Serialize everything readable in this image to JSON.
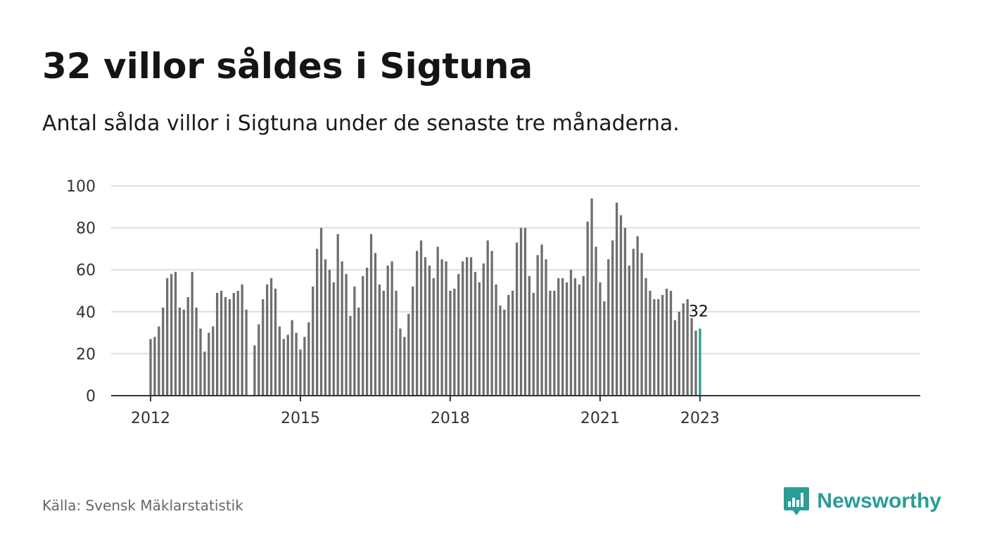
{
  "header": {
    "title": "32 villor såldes i Sigtuna",
    "subtitle": "Antal sålda villor i Sigtuna under de senaste tre månaderna."
  },
  "footer": {
    "source": "Källa: Svensk Mäklarstatistik",
    "brand": "Newsworthy",
    "brand_icon": "bar-chart-speech-bubble-icon"
  },
  "colors": {
    "bar": "#6f6f6f",
    "highlight": "#2a9d97",
    "grid": "#dddddd",
    "axis": "#333333"
  },
  "chart_data": {
    "type": "bar",
    "title": "32 villor såldes i Sigtuna",
    "subtitle": "Antal sålda villor i Sigtuna under de senaste tre månaderna.",
    "xlabel": "",
    "ylabel": "",
    "ylim": [
      0,
      100
    ],
    "yticks": [
      0,
      20,
      40,
      60,
      80,
      100
    ],
    "xticks": [
      "2012",
      "2015",
      "2018",
      "2021",
      "2023"
    ],
    "grid": true,
    "start_month": "2012-01",
    "highlight_label": "32",
    "values": [
      27,
      28,
      33,
      42,
      56,
      58,
      59,
      42,
      41,
      47,
      59,
      42,
      32,
      21,
      30,
      33,
      49,
      50,
      47,
      46,
      49,
      50,
      53,
      41,
      0,
      24,
      34,
      46,
      53,
      56,
      51,
      33,
      27,
      29,
      36,
      30,
      22,
      28,
      35,
      52,
      70,
      80,
      65,
      60,
      54,
      77,
      64,
      58,
      38,
      52,
      42,
      57,
      61,
      77,
      68,
      53,
      50,
      62,
      64,
      50,
      32,
      28,
      39,
      52,
      69,
      74,
      66,
      62,
      56,
      71,
      65,
      64,
      50,
      51,
      58,
      64,
      66,
      66,
      59,
      54,
      63,
      74,
      69,
      53,
      43,
      41,
      48,
      50,
      73,
      80,
      80,
      57,
      49,
      67,
      72,
      65,
      50,
      50,
      56,
      56,
      54,
      60,
      56,
      53,
      57,
      83,
      94,
      71,
      54,
      45,
      65,
      74,
      92,
      86,
      80,
      62,
      70,
      76,
      68,
      56,
      50,
      46,
      46,
      48,
      51,
      50,
      36,
      40,
      44,
      46,
      37,
      31,
      32
    ]
  }
}
